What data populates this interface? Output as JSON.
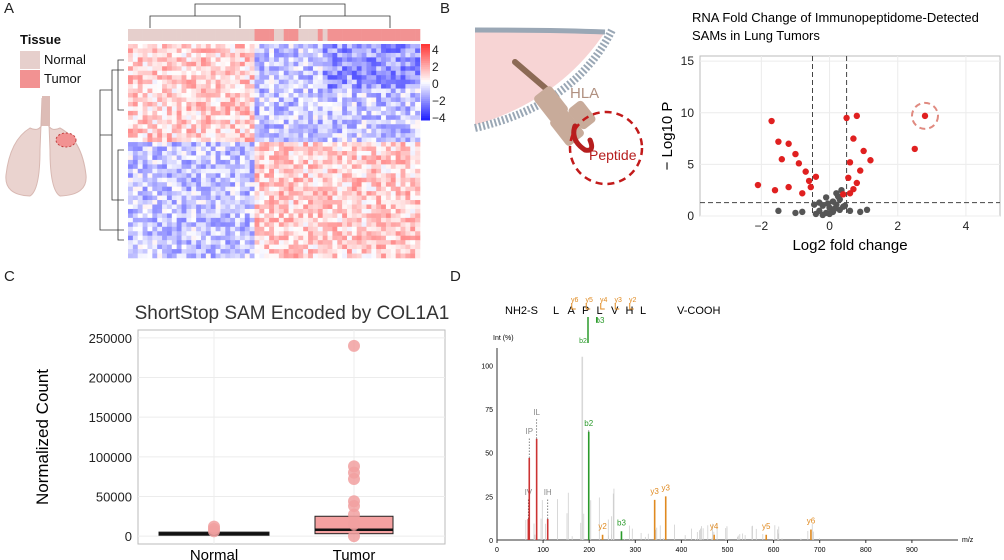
{
  "panel_letters": [
    "A",
    "B",
    "C",
    "D"
  ],
  "legend": {
    "title": "Tissue",
    "items": [
      {
        "label": "Normal",
        "color": "#e6cfcc"
      },
      {
        "label": "Tumor",
        "color": "#f29292"
      }
    ]
  },
  "diagram": {
    "hla_label": "HLA",
    "peptide_label": "Peptide"
  },
  "colors": {
    "heat_high": "#ff0000",
    "heat_low": "#0000ff",
    "volcano_sig": "#e02020",
    "volcano_ns": "#555555",
    "box_fill": "#f4a1a1",
    "box_point": "#f1a0a0",
    "spec_green": "#2a9a2a",
    "spec_orange": "#e08a20",
    "spec_red": "#cc3333",
    "spec_grey": "#888888"
  },
  "chart_data": [
    {
      "type": "heatmap",
      "panel": "A",
      "colorbar_ticks": [
        "4",
        "2",
        "0",
        "−2",
        "−4"
      ],
      "range": [
        -4,
        4
      ],
      "annotation_track": "Tissue: Normal (left), Tumor (right)"
    },
    {
      "type": "scatter",
      "panel": "B",
      "title": "RNA Fold Change of Immunopeptidome-Detected SAMs in Lung Tumors",
      "xlabel": "Log2 fold change",
      "ylabel": "− Log10 P",
      "xlim": [
        -3.8,
        5
      ],
      "ylim": [
        0,
        15.5
      ],
      "x_ticks": [
        "−2",
        "0",
        "2",
        "4"
      ],
      "y_ticks": [
        "0",
        "5",
        "10",
        "15"
      ],
      "vlines": [
        -0.5,
        0.5
      ],
      "hline": 1.3,
      "significant": [
        [
          -2.1,
          3.0
        ],
        [
          -1.7,
          9.2
        ],
        [
          -1.5,
          7.2
        ],
        [
          -1.2,
          7.0
        ],
        [
          -1.0,
          6.0
        ],
        [
          -1.4,
          5.5
        ],
        [
          -0.9,
          5.1
        ],
        [
          -0.7,
          4.3
        ],
        [
          -1.6,
          2.5
        ],
        [
          -1.2,
          2.8
        ],
        [
          -0.8,
          2.2
        ],
        [
          -0.6,
          3.4
        ],
        [
          -0.4,
          3.8
        ],
        [
          0.5,
          9.5
        ],
        [
          0.8,
          9.7
        ],
        [
          0.7,
          7.5
        ],
        [
          1.0,
          6.3
        ],
        [
          1.2,
          5.4
        ],
        [
          0.6,
          5.2
        ],
        [
          0.9,
          4.4
        ],
        [
          0.55,
          3.7
        ],
        [
          0.7,
          2.6
        ],
        [
          0.6,
          2.2
        ],
        [
          0.4,
          2.1
        ],
        [
          0.8,
          3.2
        ],
        [
          2.8,
          9.7
        ],
        [
          2.5,
          6.5
        ],
        [
          -0.55,
          2.8
        ]
      ],
      "not_significant": [
        [
          -0.3,
          0.5
        ],
        [
          -0.2,
          1.0
        ],
        [
          -0.1,
          0.3
        ],
        [
          0.0,
          0.8
        ],
        [
          0.1,
          0.4
        ],
        [
          0.2,
          1.1
        ],
        [
          0.3,
          0.6
        ],
        [
          -0.4,
          0.2
        ],
        [
          0.4,
          0.9
        ],
        [
          -0.2,
          0.1
        ],
        [
          0.1,
          1.4
        ],
        [
          0.3,
          1.6
        ],
        [
          -0.1,
          1.8
        ],
        [
          0.2,
          2.2
        ],
        [
          0.35,
          2.5
        ],
        [
          -0.3,
          1.3
        ],
        [
          0.0,
          0.2
        ],
        [
          0.15,
          0.7
        ],
        [
          -0.05,
          1.2
        ],
        [
          0.25,
          1.9
        ],
        [
          -0.8,
          0.4
        ],
        [
          -1.0,
          0.3
        ],
        [
          0.6,
          0.5
        ],
        [
          0.9,
          0.4
        ],
        [
          -1.5,
          0.5
        ],
        [
          1.1,
          0.6
        ],
        [
          0.45,
          1.0
        ],
        [
          -0.45,
          1.1
        ]
      ],
      "highlight": [
        2.8,
        9.7
      ]
    },
    {
      "type": "box",
      "panel": "C",
      "title": "ShortStop SAM Encoded by COL1A1",
      "xlabel": "",
      "ylabel": "Normalized Count",
      "categories": [
        "Normal",
        "Tumor"
      ],
      "ylim": [
        -10000,
        260000
      ],
      "y_ticks": [
        "0",
        "50000",
        "100000",
        "150000",
        "200000",
        "250000"
      ],
      "boxes": [
        {
          "name": "Normal",
          "q1": 1000,
          "median": 3000,
          "q3": 5000,
          "points": [
            6000,
            9000,
            12000
          ]
        },
        {
          "name": "Tumor",
          "q1": 3000,
          "median": 8000,
          "q3": 25000,
          "points": [
            240000,
            88000,
            80000,
            72000,
            44000,
            38000,
            27000,
            15000,
            0
          ]
        }
      ]
    },
    {
      "type": "bar",
      "panel": "D",
      "sequence": "NH2-S L A P L V H L V-COOH",
      "seq_left": "NH2-S",
      "seq_residues": [
        "L",
        "A",
        "P",
        "L",
        "V",
        "H",
        "L"
      ],
      "seq_right": "V-COOH",
      "y_ion_labels": [
        "y6",
        "y5",
        "y4",
        "y3",
        "y2"
      ],
      "b_ion_labels": [
        "b2",
        "b3"
      ],
      "xlabel": "m/z",
      "ylabel": "Int (%)",
      "x_ticks": [
        "0",
        "100",
        "200",
        "300",
        "400",
        "500",
        "600",
        "700",
        "800",
        "900"
      ],
      "y_ticks": [
        "0",
        "25",
        "50",
        "75",
        "100"
      ],
      "xlim": [
        0,
        1000
      ],
      "ylim": [
        0,
        110
      ],
      "peaks": [
        {
          "mz": 68,
          "int": 12,
          "label": "IV",
          "kind": "red"
        },
        {
          "mz": 70,
          "int": 47,
          "label": "IP",
          "kind": "red"
        },
        {
          "mz": 86,
          "int": 58,
          "label": "IL",
          "kind": "red"
        },
        {
          "mz": 110,
          "int": 12,
          "label": "IH",
          "kind": "red"
        },
        {
          "mz": 185,
          "int": 105,
          "label": "",
          "kind": "grey"
        },
        {
          "mz": 199,
          "int": 62,
          "label": "b2",
          "kind": "green"
        },
        {
          "mz": 270,
          "int": 5,
          "label": "b3",
          "kind": "green"
        },
        {
          "mz": 229,
          "int": 3,
          "label": "y2",
          "kind": "orange"
        },
        {
          "mz": 342,
          "int": 23,
          "label": "y3",
          "kind": "orange"
        },
        {
          "mz": 366,
          "int": 25,
          "label": "y3",
          "kind": "orange"
        },
        {
          "mz": 471,
          "int": 3,
          "label": "y4",
          "kind": "orange"
        },
        {
          "mz": 584,
          "int": 3,
          "label": "y5",
          "kind": "orange"
        },
        {
          "mz": 681,
          "int": 6,
          "label": "y6",
          "kind": "orange"
        }
      ]
    }
  ]
}
